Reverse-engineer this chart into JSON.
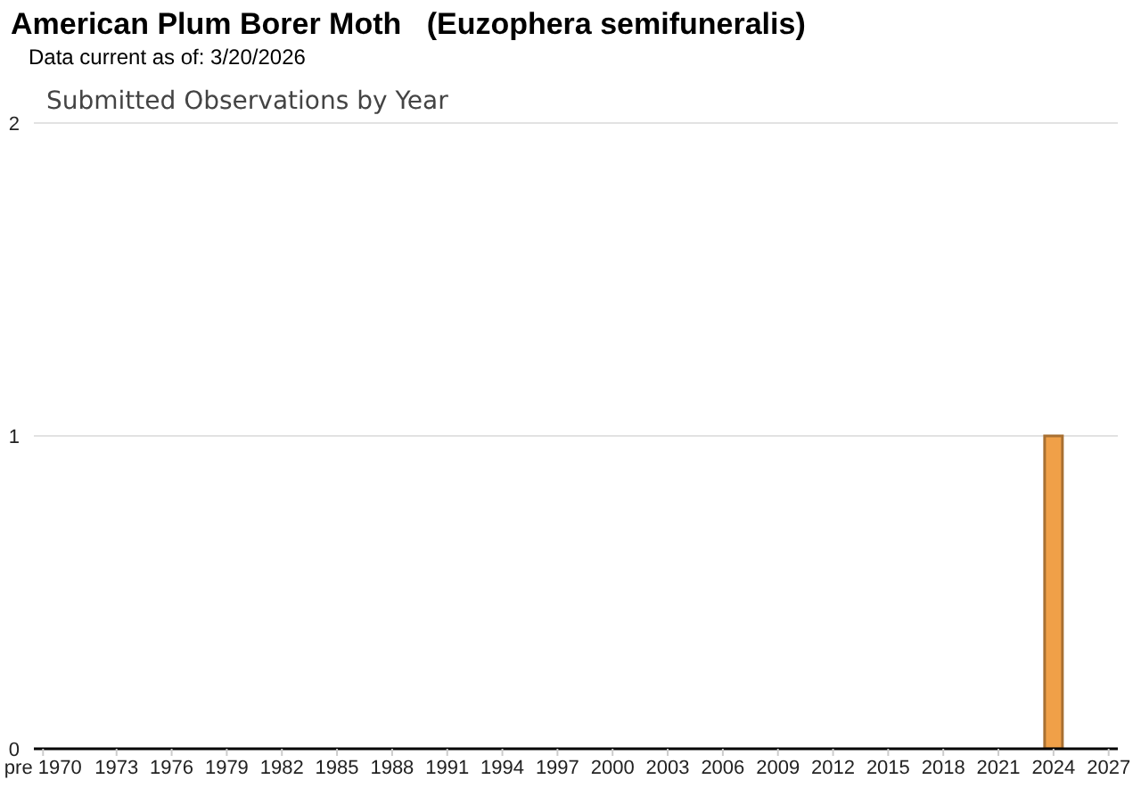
{
  "chart_data": {
    "type": "bar",
    "title": "American Plum Borer Moth   (Euzophera semifuneralis)",
    "subtitle": "Data current as of: 3/20/2026",
    "annotations": [
      "Submitted Observations by Year"
    ],
    "x": [
      2024
    ],
    "values": [
      1
    ],
    "color": "#f0a048",
    "xlim": [
      1968.5,
      2027.5
    ],
    "xticks": [
      {
        "value": 1969,
        "label": "pre 1970"
      },
      1973,
      1976,
      1979,
      1982,
      1985,
      1988,
      1991,
      1994,
      1997,
      2000,
      2003,
      2006,
      2009,
      2012,
      2015,
      2018,
      2021,
      2024,
      2027
    ],
    "ylim": [
      0,
      2
    ],
    "yticks": [
      0,
      1,
      2
    ],
    "grid": "y",
    "legend": false
  }
}
